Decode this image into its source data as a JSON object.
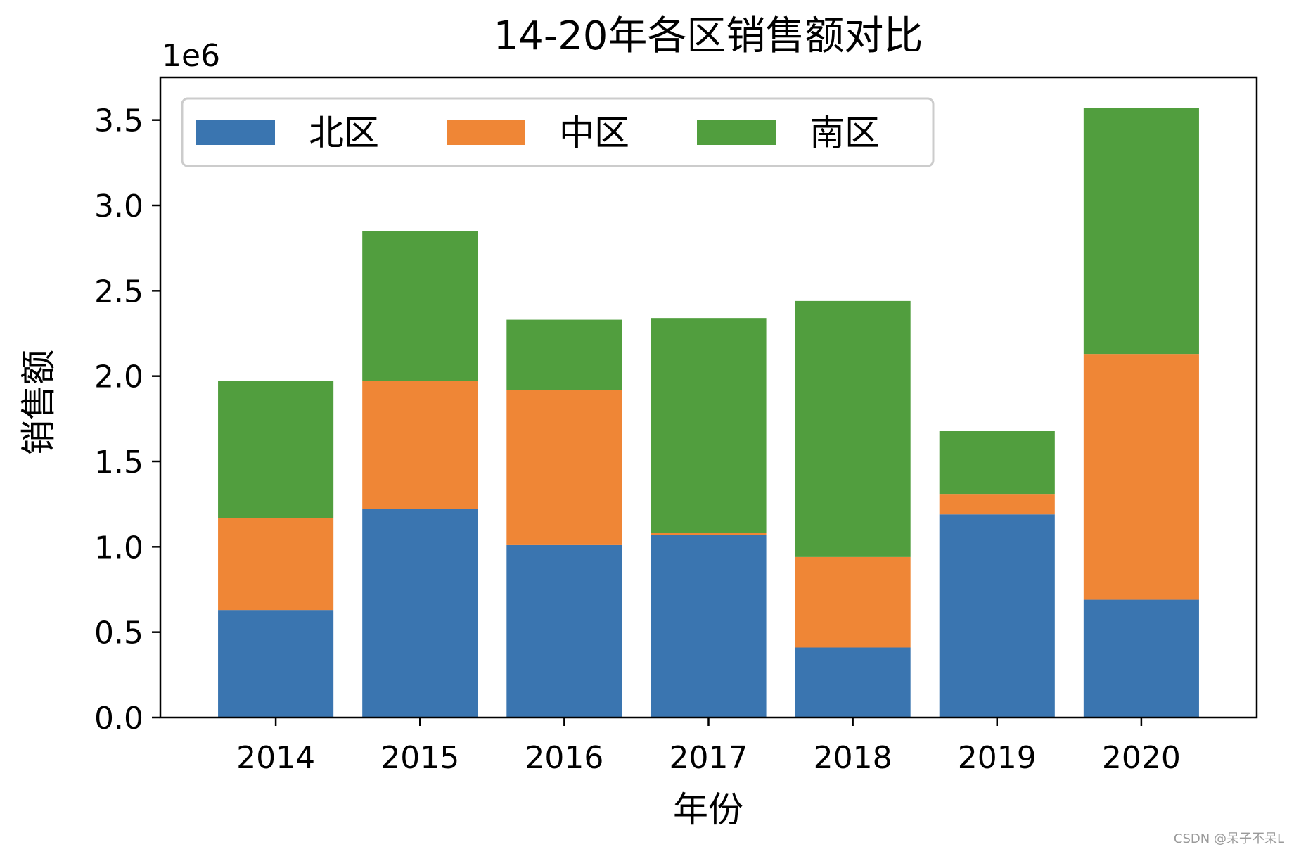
{
  "chart_data": {
    "type": "bar",
    "stacked": true,
    "title": "14-20年各区销售额对比",
    "xlabel": "年份",
    "ylabel": "销售额",
    "y_offset_label": "1e6",
    "categories": [
      "2014",
      "2015",
      "2016",
      "2017",
      "2018",
      "2019",
      "2020"
    ],
    "series": [
      {
        "name": "北区",
        "color": "#3a75b0",
        "values": [
          630000,
          1220000,
          1010000,
          1070000,
          410000,
          1190000,
          690000
        ]
      },
      {
        "name": "中区",
        "color": "#ef8636",
        "values": [
          540000,
          750000,
          910000,
          10000,
          530000,
          120000,
          1440000
        ]
      },
      {
        "name": "南区",
        "color": "#519e3e",
        "values": [
          800000,
          880000,
          410000,
          1260000,
          1500000,
          370000,
          1440000
        ]
      }
    ],
    "ylim": [
      0,
      3750000
    ],
    "yticks": [
      0,
      500000,
      1000000,
      1500000,
      2000000,
      2500000,
      3000000,
      3500000
    ],
    "ytick_labels": [
      "0.0",
      "0.5",
      "1.0",
      "1.5",
      "2.0",
      "2.5",
      "3.0",
      "3.5"
    ],
    "legend": {
      "placement": "top-left",
      "ncol": 3
    },
    "grid": false
  },
  "watermark": "CSDN @呆子不呆L"
}
